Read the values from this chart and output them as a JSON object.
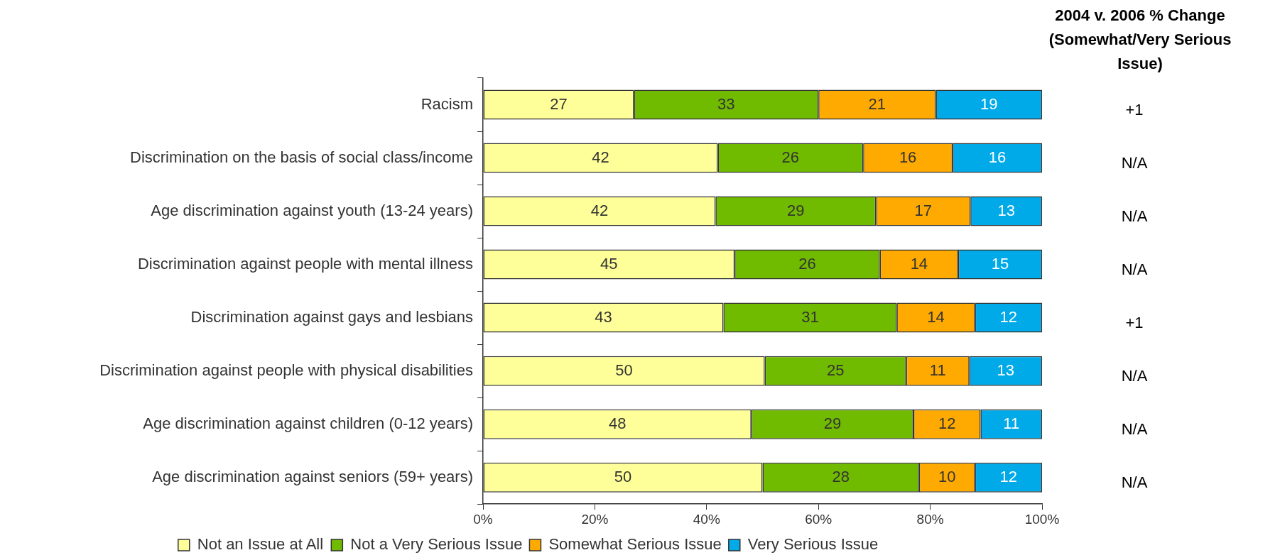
{
  "chart_data": {
    "type": "bar",
    "orientation": "horizontal",
    "stacked": true,
    "categories": [
      "Racism",
      "Discrimination on the basis of social class/income",
      "Age discrimination against youth (13-24 years)",
      "Discrimination against people with mental illness",
      "Discrimination against gays and lesbians",
      "Discrimination against people with physical disabilities",
      "Age discrimination against children (0-12 years)",
      "Age discrimination against seniors (59+ years)"
    ],
    "series": [
      {
        "name": "Not an Issue at All",
        "color": "#ffff99",
        "values": [
          27,
          42,
          41.6,
          45,
          43,
          50.4,
          48,
          50
        ],
        "value_labels": [
          "27",
          "42",
          "42",
          "45",
          "43",
          "50",
          "48",
          "50"
        ]
      },
      {
        "name": "Not a Very Serious Issue",
        "color": "#70ba00",
        "values": [
          33,
          26,
          28.7,
          26,
          31,
          25.3,
          29,
          28
        ],
        "value_labels": [
          "33",
          "26",
          "29",
          "26",
          "31",
          "25",
          "29",
          "28"
        ]
      },
      {
        "name": "Somewhat Serious Issue",
        "color": "#ffaa00",
        "values": [
          21,
          16,
          16.9,
          14,
          14,
          11.3,
          12,
          10
        ],
        "value_labels": [
          "21",
          "16",
          "17",
          "14",
          "14",
          "11",
          "12",
          "10"
        ]
      },
      {
        "name": "Very Serious Issue",
        "color": "#00aae8",
        "values": [
          19,
          16,
          12.8,
          15,
          12,
          13,
          11,
          12
        ],
        "value_labels": [
          "19",
          "16",
          "13",
          "15",
          "12",
          "13",
          "11",
          "12"
        ]
      }
    ],
    "xlim": [
      0,
      100
    ],
    "xticks": [
      {
        "value": 0,
        "label": "0%"
      },
      {
        "value": 20,
        "label": "20%"
      },
      {
        "value": 40,
        "label": "40%"
      },
      {
        "value": 60,
        "label": "60%"
      },
      {
        "value": 80,
        "label": "80%"
      },
      {
        "value": 100,
        "label": "100%"
      }
    ],
    "grid": false,
    "legend": "bottom",
    "annotations": [
      "2004 v. 2006 % Change (Somewhat/Very Serious Issue)",
      "+1",
      "N/A",
      "N/A",
      "N/A",
      "+1",
      "N/A",
      "N/A",
      "N/A"
    ]
  }
}
